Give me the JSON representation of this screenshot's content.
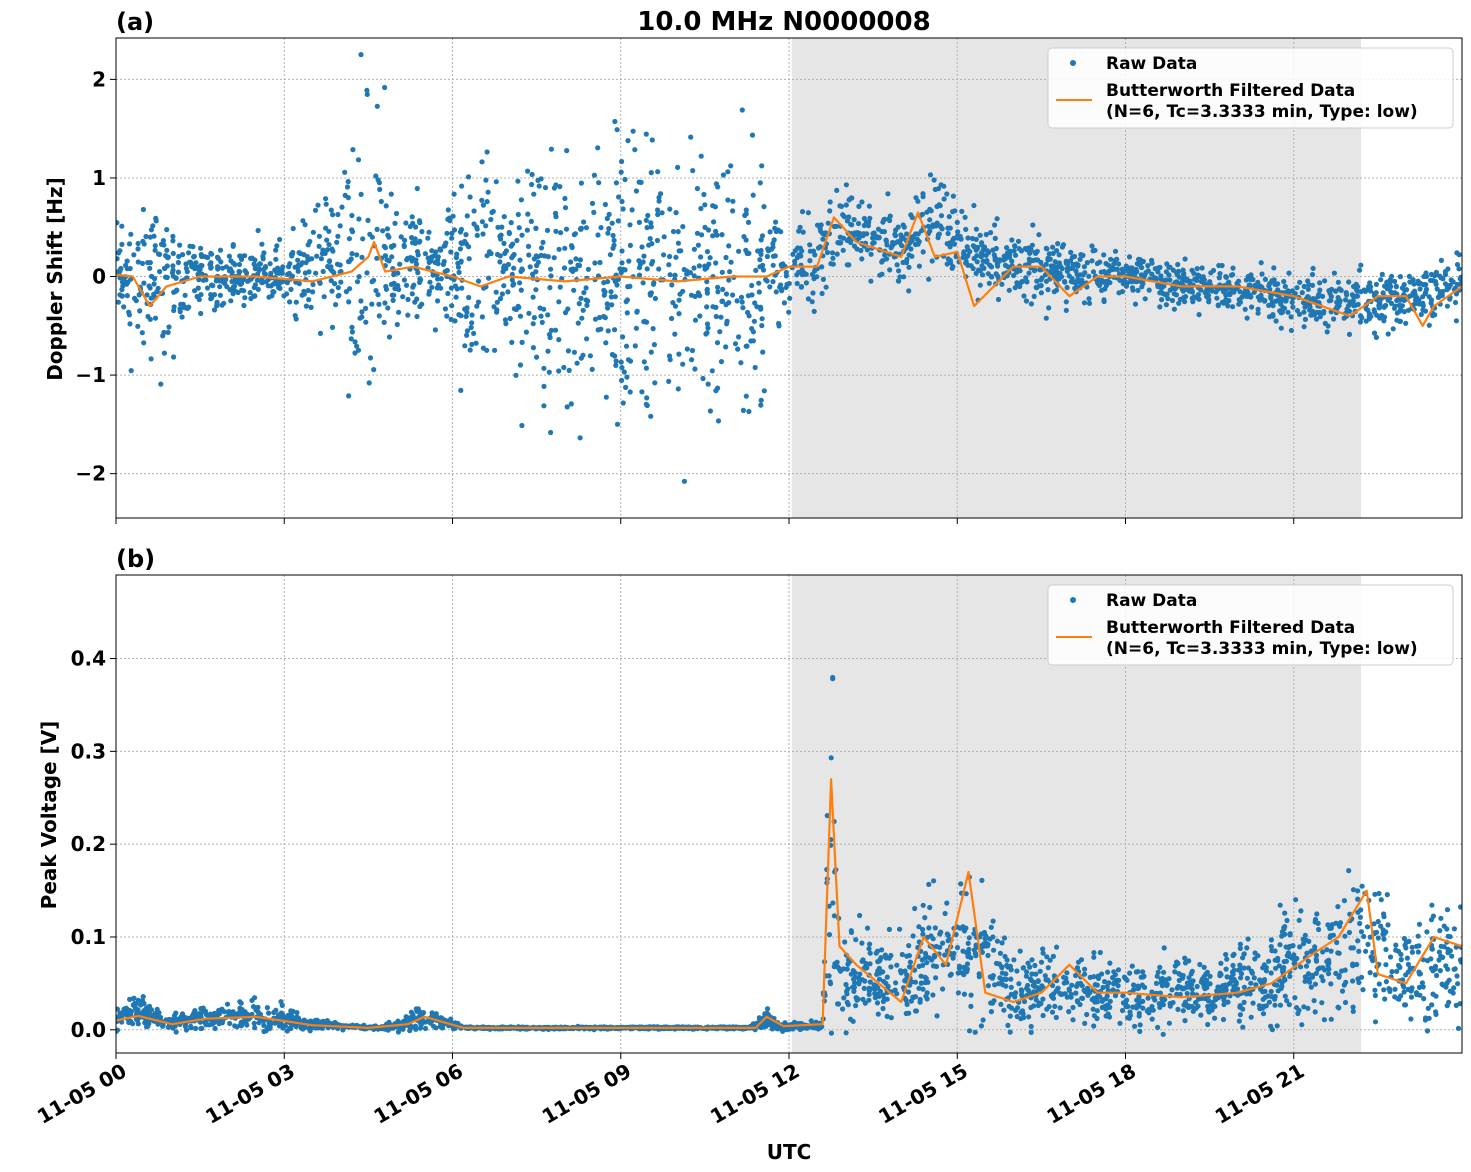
{
  "figure": {
    "title": "10.0 MHz N0000008",
    "xlabel": "UTC"
  },
  "colors": {
    "raw": "#1f77b4",
    "filtered": "#ff7f0e",
    "shade": "#e6e6e6"
  },
  "chart_data": [
    {
      "type": "scatter",
      "panel_label": "(a)",
      "ylabel": "Doppler Shift [Hz]",
      "ylim": [
        -2.45,
        2.42
      ],
      "xlim_hours": [
        0,
        24
      ],
      "x_tick_labels": [
        "11-05 00",
        "11-05 03",
        "11-05 06",
        "11-05 09",
        "11-05 12",
        "11-05 15",
        "11-05 18",
        "11-05 21"
      ],
      "x_tick_hours": [
        0,
        3,
        6,
        9,
        12,
        15,
        18,
        21
      ],
      "y_ticks": [
        -2,
        -1,
        0,
        1,
        2
      ],
      "y_tick_labels": [
        "−2",
        "−1",
        "0",
        "1",
        "2"
      ],
      "grid": true,
      "legend_placement": "top-right",
      "shaded_interval_hours": [
        12.05,
        22.2
      ],
      "series": [
        {
          "name": "Raw Data",
          "kind": "points",
          "spread_profile": [
            [
              0,
              0.08,
              0.3
            ],
            [
              0.5,
              0.0,
              0.7
            ],
            [
              1.0,
              -0.05,
              0.5
            ],
            [
              2.0,
              0.0,
              0.25
            ],
            [
              3.0,
              0.0,
              0.3
            ],
            [
              4.0,
              0.2,
              0.9
            ],
            [
              4.6,
              0.3,
              1.3
            ],
            [
              5.3,
              0.1,
              0.6
            ],
            [
              5.8,
              0.05,
              0.25
            ],
            [
              6.0,
              0.0,
              0.8
            ],
            [
              7.0,
              -0.05,
              1.1
            ],
            [
              9.0,
              -0.05,
              1.25
            ],
            [
              11.5,
              -0.05,
              1.2
            ],
            [
              11.7,
              0.1,
              0.45
            ],
            [
              12.5,
              0.15,
              0.35
            ],
            [
              12.9,
              0.5,
              0.35
            ],
            [
              14.0,
              0.25,
              0.3
            ],
            [
              14.4,
              0.55,
              0.35
            ],
            [
              16.0,
              0.1,
              0.3
            ],
            [
              18.0,
              0.0,
              0.2
            ],
            [
              20.0,
              -0.15,
              0.2
            ],
            [
              22.0,
              -0.3,
              0.25
            ],
            [
              23.0,
              -0.2,
              0.25
            ],
            [
              24.0,
              -0.1,
              0.3
            ]
          ]
        },
        {
          "name": "Butterworth Filtered Data\n(N=6, Tc=3.3333 min, Type: low)",
          "kind": "line",
          "points": [
            [
              0,
              0.02
            ],
            [
              0.3,
              0.0
            ],
            [
              0.6,
              -0.3
            ],
            [
              0.9,
              -0.1
            ],
            [
              1.5,
              0.0
            ],
            [
              2.5,
              0.0
            ],
            [
              3.5,
              -0.05
            ],
            [
              4.2,
              0.05
            ],
            [
              4.5,
              0.2
            ],
            [
              4.6,
              0.35
            ],
            [
              4.8,
              0.05
            ],
            [
              5.3,
              0.1
            ],
            [
              6.0,
              0.0
            ],
            [
              6.5,
              -0.1
            ],
            [
              7.0,
              0.0
            ],
            [
              8.0,
              -0.05
            ],
            [
              9.0,
              0.0
            ],
            [
              10.0,
              -0.05
            ],
            [
              11.0,
              0.0
            ],
            [
              11.6,
              0.0
            ],
            [
              12.0,
              0.1
            ],
            [
              12.5,
              0.1
            ],
            [
              12.8,
              0.6
            ],
            [
              13.2,
              0.35
            ],
            [
              14.0,
              0.2
            ],
            [
              14.3,
              0.65
            ],
            [
              14.6,
              0.2
            ],
            [
              15.0,
              0.25
            ],
            [
              15.3,
              -0.3
            ],
            [
              16.0,
              0.1
            ],
            [
              16.5,
              0.1
            ],
            [
              17.0,
              -0.2
            ],
            [
              17.5,
              0.0
            ],
            [
              18.0,
              0.0
            ],
            [
              19.0,
              -0.1
            ],
            [
              20.0,
              -0.1
            ],
            [
              21.0,
              -0.2
            ],
            [
              21.5,
              -0.3
            ],
            [
              22.0,
              -0.4
            ],
            [
              22.5,
              -0.2
            ],
            [
              23.0,
              -0.2
            ],
            [
              23.3,
              -0.5
            ],
            [
              23.5,
              -0.3
            ],
            [
              24.0,
              -0.1
            ]
          ]
        }
      ]
    },
    {
      "type": "scatter",
      "panel_label": "(b)",
      "ylabel": "Peak Voltage [V]",
      "ylim": [
        -0.025,
        0.49
      ],
      "xlim_hours": [
        0,
        24
      ],
      "x_tick_labels": [
        "11-05 00",
        "11-05 03",
        "11-05 06",
        "11-05 09",
        "11-05 12",
        "11-05 15",
        "11-05 18",
        "11-05 21"
      ],
      "x_tick_hours": [
        0,
        3,
        6,
        9,
        12,
        15,
        18,
        21
      ],
      "y_ticks": [
        0.0,
        0.1,
        0.2,
        0.3,
        0.4
      ],
      "y_tick_labels": [
        "0.0",
        "0.1",
        "0.2",
        "0.3",
        "0.4"
      ],
      "grid": true,
      "legend_placement": "top-right",
      "shaded_interval_hours": [
        12.05,
        22.2
      ],
      "series": [
        {
          "name": "Raw Data",
          "kind": "points",
          "spread_profile": [
            [
              0,
              0.012,
              0.01
            ],
            [
              0.3,
              0.02,
              0.015
            ],
            [
              1.0,
              0.008,
              0.006
            ],
            [
              1.5,
              0.012,
              0.01
            ],
            [
              2.5,
              0.015,
              0.015
            ],
            [
              3.5,
              0.006,
              0.005
            ],
            [
              4.5,
              0.002,
              0.001
            ],
            [
              5.0,
              0.004,
              0.004
            ],
            [
              5.5,
              0.015,
              0.013
            ],
            [
              6.2,
              0.002,
              0.001
            ],
            [
              11.3,
              0.002,
              0.001
            ],
            [
              11.6,
              0.012,
              0.01
            ],
            [
              11.8,
              0.003,
              0.003
            ],
            [
              12.6,
              0.005,
              0.004
            ],
            [
              12.75,
              0.18,
              0.2
            ],
            [
              12.9,
              0.06,
              0.045
            ],
            [
              14.0,
              0.05,
              0.04
            ],
            [
              14.5,
              0.08,
              0.05
            ],
            [
              15.2,
              0.09,
              0.06
            ],
            [
              16.0,
              0.05,
              0.035
            ],
            [
              17.5,
              0.04,
              0.03
            ],
            [
              19.5,
              0.04,
              0.03
            ],
            [
              20.5,
              0.06,
              0.045
            ],
            [
              21.5,
              0.08,
              0.06
            ],
            [
              22.5,
              0.09,
              0.07
            ],
            [
              23.0,
              0.06,
              0.05
            ],
            [
              24.0,
              0.07,
              0.06
            ]
          ]
        },
        {
          "name": "Butterworth Filtered Data\n(N=6, Tc=3.3333 min, Type: low)",
          "kind": "line",
          "points": [
            [
              0,
              0.01
            ],
            [
              0.4,
              0.015
            ],
            [
              1.0,
              0.006
            ],
            [
              1.6,
              0.012
            ],
            [
              2.5,
              0.014
            ],
            [
              3.5,
              0.005
            ],
            [
              4.5,
              0.002
            ],
            [
              5.2,
              0.006
            ],
            [
              5.5,
              0.014
            ],
            [
              6.2,
              0.002
            ],
            [
              11.4,
              0.002
            ],
            [
              11.6,
              0.014
            ],
            [
              11.9,
              0.004
            ],
            [
              12.6,
              0.006
            ],
            [
              12.75,
              0.27
            ],
            [
              12.9,
              0.09
            ],
            [
              13.2,
              0.07
            ],
            [
              13.6,
              0.05
            ],
            [
              14.0,
              0.03
            ],
            [
              14.4,
              0.1
            ],
            [
              14.8,
              0.07
            ],
            [
              15.2,
              0.17
            ],
            [
              15.5,
              0.04
            ],
            [
              16.0,
              0.03
            ],
            [
              16.5,
              0.04
            ],
            [
              17.0,
              0.07
            ],
            [
              17.5,
              0.04
            ],
            [
              18.0,
              0.04
            ],
            [
              19.0,
              0.035
            ],
            [
              20.0,
              0.04
            ],
            [
              20.6,
              0.05
            ],
            [
              21.3,
              0.08
            ],
            [
              21.8,
              0.1
            ],
            [
              22.3,
              0.15
            ],
            [
              22.5,
              0.06
            ],
            [
              23.0,
              0.05
            ],
            [
              23.5,
              0.1
            ],
            [
              24.0,
              0.09
            ]
          ]
        }
      ]
    }
  ]
}
